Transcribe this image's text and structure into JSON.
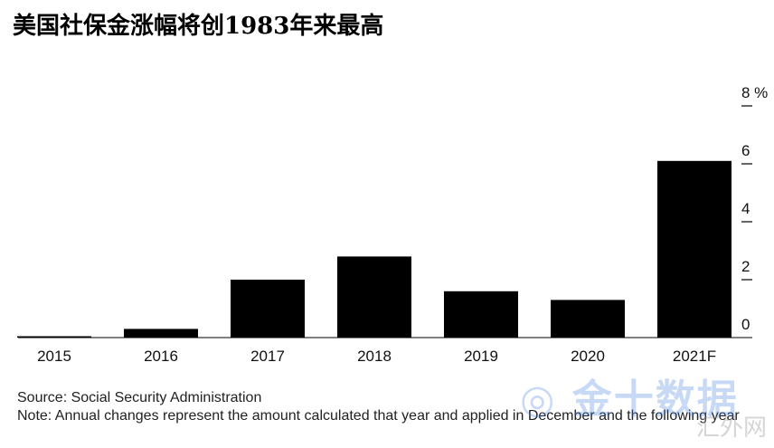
{
  "chart_data": {
    "type": "bar",
    "title": "美国社保金涨幅将创1983年来最高",
    "categories": [
      "2015",
      "2016",
      "2017",
      "2018",
      "2019",
      "2020",
      "2021F"
    ],
    "values": [
      0.0,
      0.3,
      2.0,
      2.8,
      1.6,
      1.3,
      6.1
    ],
    "ylim": [
      0,
      8
    ],
    "yticks": [
      0,
      2,
      4,
      6,
      8
    ],
    "ytick_labels": [
      "0",
      "2",
      "4",
      "6",
      "8 %"
    ],
    "y_axis_side": "right",
    "grid": false,
    "bar_color": "#000000",
    "source": "Source: Social Security Administration",
    "note": "Note: Annual changes represent the amount calculated that year and applied in December and the following year"
  },
  "watermark": {
    "text": "金十数据",
    "sub": "汇外网",
    "color": "#3d7be0"
  }
}
